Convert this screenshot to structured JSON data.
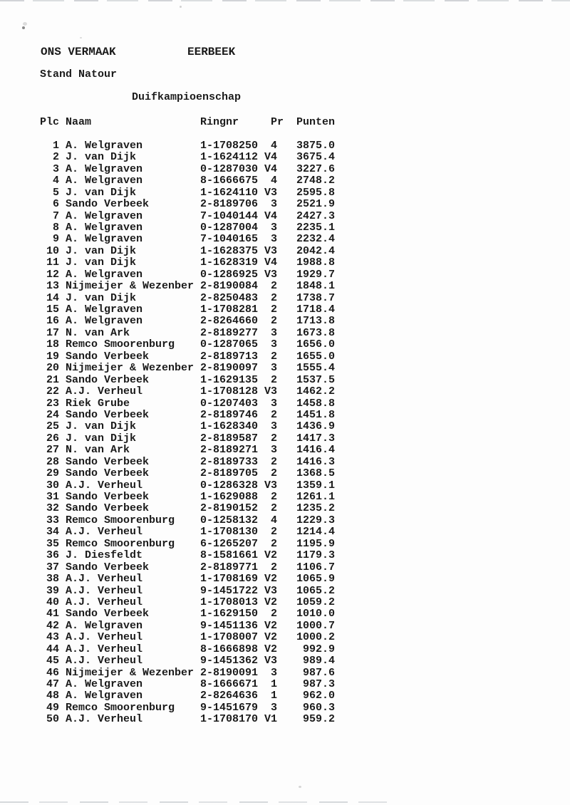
{
  "header": {
    "club": "ONS VERMAAK",
    "city": "EERBEEK",
    "subtitle": "Stand Natour",
    "title": "Duifkampioenschap"
  },
  "table": {
    "headers": {
      "plc": "Plc",
      "naam": "Naam",
      "ringnr": "Ringnr",
      "pr": "Pr",
      "punten": "Punten"
    },
    "rows": [
      {
        "plc": "1",
        "naam": "A. Welgraven",
        "ringnr": "1-1708250",
        "pr": "4",
        "punten": "3875.0"
      },
      {
        "plc": "2",
        "naam": "J. van Dijk",
        "ringnr": "1-1624112 V",
        "pr": "4",
        "punten": "3675.4"
      },
      {
        "plc": "3",
        "naam": "A. Welgraven",
        "ringnr": "0-1287030 V",
        "pr": "4",
        "punten": "3227.6"
      },
      {
        "plc": "4",
        "naam": "A. Welgraven",
        "ringnr": "8-1666675",
        "pr": "4",
        "punten": "2748.2"
      },
      {
        "plc": "5",
        "naam": "J. van Dijk",
        "ringnr": "1-1624110 V",
        "pr": "3",
        "punten": "2595.8"
      },
      {
        "plc": "6",
        "naam": "Sando Verbeek",
        "ringnr": "2-8189706",
        "pr": "3",
        "punten": "2521.9"
      },
      {
        "plc": "7",
        "naam": "A. Welgraven",
        "ringnr": "7-1040144 V",
        "pr": "4",
        "punten": "2427.3"
      },
      {
        "plc": "8",
        "naam": "A. Welgraven",
        "ringnr": "0-1287004",
        "pr": "3",
        "punten": "2235.1"
      },
      {
        "plc": "9",
        "naam": "A. Welgraven",
        "ringnr": "7-1040165",
        "pr": "3",
        "punten": "2232.4"
      },
      {
        "plc": "10",
        "naam": "J. van Dijk",
        "ringnr": "1-1628375 V",
        "pr": "3",
        "punten": "2042.4"
      },
      {
        "plc": "11",
        "naam": "J. van Dijk",
        "ringnr": "1-1628319 V",
        "pr": "4",
        "punten": "1988.8"
      },
      {
        "plc": "12",
        "naam": "A. Welgraven",
        "ringnr": "0-1286925 V",
        "pr": "3",
        "punten": "1929.7"
      },
      {
        "plc": "13",
        "naam": "Nijmeijer & Wezenber",
        "ringnr": "2-8190084",
        "pr": "2",
        "punten": "1848.1"
      },
      {
        "plc": "14",
        "naam": "J. van Dijk",
        "ringnr": "2-8250483",
        "pr": "2",
        "punten": "1738.7"
      },
      {
        "plc": "15",
        "naam": "A. Welgraven",
        "ringnr": "1-1708281",
        "pr": "2",
        "punten": "1718.4"
      },
      {
        "plc": "16",
        "naam": "A. Welgraven",
        "ringnr": "2-8264660",
        "pr": "2",
        "punten": "1713.8"
      },
      {
        "plc": "17",
        "naam": "N. van Ark",
        "ringnr": "2-8189277",
        "pr": "3",
        "punten": "1673.8"
      },
      {
        "plc": "18",
        "naam": "Remco Smoorenburg",
        "ringnr": "0-1287065",
        "pr": "3",
        "punten": "1656.0"
      },
      {
        "plc": "19",
        "naam": "Sando Verbeek",
        "ringnr": "2-8189713",
        "pr": "2",
        "punten": "1655.0"
      },
      {
        "plc": "20",
        "naam": "Nijmeijer & Wezenber",
        "ringnr": "2-8190097",
        "pr": "3",
        "punten": "1555.4"
      },
      {
        "plc": "21",
        "naam": "Sando Verbeek",
        "ringnr": "1-1629135",
        "pr": "2",
        "punten": "1537.5"
      },
      {
        "plc": "22",
        "naam": "A.J. Verheul",
        "ringnr": "1-1708128 V",
        "pr": "3",
        "punten": "1462.2"
      },
      {
        "plc": "23",
        "naam": "Riek Grube",
        "ringnr": "0-1207403",
        "pr": "3",
        "punten": "1458.8"
      },
      {
        "plc": "24",
        "naam": "Sando Verbeek",
        "ringnr": "2-8189746",
        "pr": "2",
        "punten": "1451.8"
      },
      {
        "plc": "25",
        "naam": "J. van Dijk",
        "ringnr": "1-1628340",
        "pr": "3",
        "punten": "1436.9"
      },
      {
        "plc": "26",
        "naam": "J. van Dijk",
        "ringnr": "2-8189587",
        "pr": "2",
        "punten": "1417.3"
      },
      {
        "plc": "27",
        "naam": "N. van Ark",
        "ringnr": "2-8189271",
        "pr": "3",
        "punten": "1416.4"
      },
      {
        "plc": "28",
        "naam": "Sando Verbeek",
        "ringnr": "2-8189733",
        "pr": "2",
        "punten": "1416.3"
      },
      {
        "plc": "29",
        "naam": "Sando Verbeek",
        "ringnr": "2-8189705",
        "pr": "2",
        "punten": "1368.5"
      },
      {
        "plc": "30",
        "naam": "A.J. Verheul",
        "ringnr": "0-1286328 V",
        "pr": "3",
        "punten": "1359.1"
      },
      {
        "plc": "31",
        "naam": "Sando Verbeek",
        "ringnr": "1-1629088",
        "pr": "2",
        "punten": "1261.1"
      },
      {
        "plc": "32",
        "naam": "Sando Verbeek",
        "ringnr": "2-8190152",
        "pr": "2",
        "punten": "1235.2"
      },
      {
        "plc": "33",
        "naam": "Remco Smoorenburg",
        "ringnr": "0-1258132",
        "pr": "4",
        "punten": "1229.3"
      },
      {
        "plc": "34",
        "naam": "A.J. Verheul",
        "ringnr": "1-1708130",
        "pr": "2",
        "punten": "1214.4"
      },
      {
        "plc": "35",
        "naam": "Remco Smoorenburg",
        "ringnr": "6-1265207",
        "pr": "2",
        "punten": "1195.9"
      },
      {
        "plc": "36",
        "naam": "J. Diesfeldt",
        "ringnr": "8-1581661 V",
        "pr": "2",
        "punten": "1179.3"
      },
      {
        "plc": "37",
        "naam": "Sando Verbeek",
        "ringnr": "2-8189771",
        "pr": "2",
        "punten": "1106.7"
      },
      {
        "plc": "38",
        "naam": "A.J. Verheul",
        "ringnr": "1-1708169 V",
        "pr": "2",
        "punten": "1065.9"
      },
      {
        "plc": "39",
        "naam": "A.J. Verheul",
        "ringnr": "9-1451722 V",
        "pr": "3",
        "punten": "1065.2"
      },
      {
        "plc": "40",
        "naam": "A.J. Verheul",
        "ringnr": "1-1708013 V",
        "pr": "2",
        "punten": "1059.2"
      },
      {
        "plc": "41",
        "naam": "Sando Verbeek",
        "ringnr": "1-1629150",
        "pr": "2",
        "punten": "1010.0"
      },
      {
        "plc": "42",
        "naam": "A. Welgraven",
        "ringnr": "9-1451136 V",
        "pr": "2",
        "punten": "1000.7"
      },
      {
        "plc": "43",
        "naam": "A.J. Verheul",
        "ringnr": "1-1708007 V",
        "pr": "2",
        "punten": "1000.2"
      },
      {
        "plc": "44",
        "naam": "A.J. Verheul",
        "ringnr": "8-1666898 V",
        "pr": "2",
        "punten": "992.9"
      },
      {
        "plc": "45",
        "naam": "A.J. Verheul",
        "ringnr": "9-1451362 V",
        "pr": "3",
        "punten": "989.4"
      },
      {
        "plc": "46",
        "naam": "Nijmeijer & Wezenber",
        "ringnr": "2-8190091",
        "pr": "3",
        "punten": "987.6"
      },
      {
        "plc": "47",
        "naam": "A. Welgraven",
        "ringnr": "8-1666671",
        "pr": "1",
        "punten": "987.3"
      },
      {
        "plc": "48",
        "naam": "A. Welgraven",
        "ringnr": "2-8264636",
        "pr": "1",
        "punten": "962.0"
      },
      {
        "plc": "49",
        "naam": "Remco Smoorenburg",
        "ringnr": "9-1451679",
        "pr": "3",
        "punten": "960.3"
      },
      {
        "plc": "50",
        "naam": "A.J. Verheul",
        "ringnr": "1-1708170 V",
        "pr": "1",
        "punten": "959.2"
      }
    ]
  }
}
